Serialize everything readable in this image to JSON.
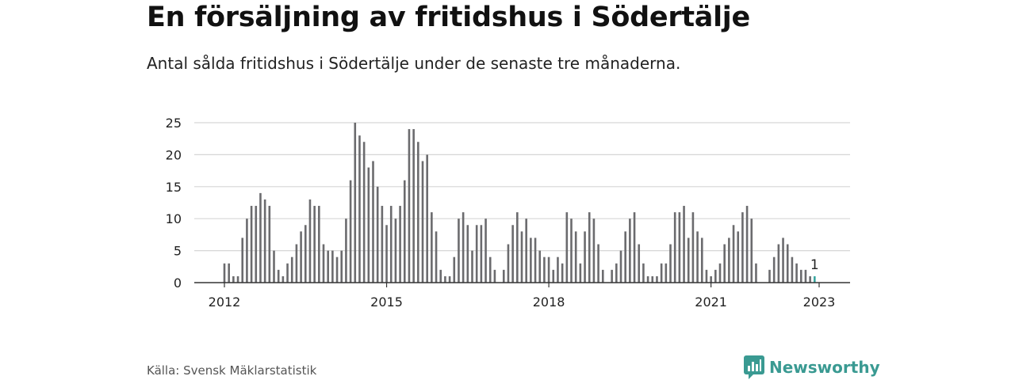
{
  "title": "En försäljning av fritidshus i Södertälje",
  "subtitle": "Antal sålda fritidshus i Södertälje under de senaste tre månaderna.",
  "source": "Källa: Svensk Mäklarstatistik",
  "brand": {
    "name": "Newsworthy",
    "color": "#3a9a92"
  },
  "chart_data": {
    "type": "bar",
    "title": "En försäljning av fritidshus i Södertälje",
    "subtitle": "Antal sålda fritidshus i Södertälje under de senaste tre månaderna.",
    "xlabel": "",
    "ylabel": "",
    "ylim": [
      0,
      25
    ],
    "yticks": [
      0,
      5,
      10,
      15,
      20,
      25
    ],
    "xticks": [
      "2012",
      "2015",
      "2018",
      "2021",
      "2023"
    ],
    "grid": true,
    "bar_color": "#6b6b6e",
    "highlight_color": "#3aa6a0",
    "start_month": "2012-01",
    "values": [
      3,
      3,
      1,
      1,
      7,
      10,
      12,
      12,
      14,
      13,
      12,
      5,
      2,
      1,
      3,
      4,
      6,
      8,
      9,
      13,
      12,
      12,
      6,
      5,
      5,
      4,
      5,
      10,
      16,
      25,
      23,
      22,
      18,
      19,
      15,
      12,
      9,
      12,
      10,
      12,
      16,
      24,
      24,
      22,
      19,
      20,
      11,
      8,
      2,
      1,
      1,
      4,
      10,
      11,
      9,
      5,
      9,
      9,
      10,
      4,
      2,
      0,
      2,
      6,
      9,
      11,
      8,
      10,
      7,
      7,
      5,
      4,
      4,
      2,
      4,
      3,
      11,
      10,
      8,
      3,
      8,
      11,
      10,
      6,
      2,
      0,
      2,
      3,
      5,
      8,
      10,
      11,
      6,
      3,
      1,
      1,
      1,
      3,
      3,
      6,
      11,
      11,
      12,
      7,
      11,
      8,
      7,
      2,
      1,
      2,
      3,
      6,
      7,
      9,
      8,
      11,
      12,
      10,
      3,
      0,
      0,
      2,
      4,
      6,
      7,
      6,
      4,
      3,
      2,
      2,
      1,
      1
    ],
    "highlight_last": true,
    "annotations": [
      {
        "label": "1",
        "value": 1,
        "position": "last bar"
      }
    ]
  }
}
